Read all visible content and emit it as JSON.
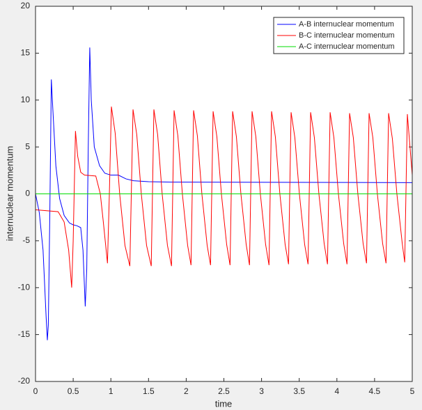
{
  "chart_data": {
    "type": "line",
    "xlabel": "time",
    "ylabel": "internuclear momentum",
    "xlim": [
      0,
      5
    ],
    "ylim": [
      -20,
      20
    ],
    "xticks": [
      0,
      0.5,
      1,
      1.5,
      2,
      2.5,
      3,
      3.5,
      4,
      4.5,
      5
    ],
    "yticks": [
      -20,
      -15,
      -10,
      -5,
      0,
      5,
      10,
      15,
      20
    ],
    "legend": "upper right",
    "series": [
      {
        "name": "A-B internuclear momentum",
        "color": "#0000ff",
        "x": [
          0,
          0.05,
          0.1,
          0.14,
          0.157,
          0.17,
          0.19,
          0.21,
          0.23,
          0.27,
          0.32,
          0.38,
          0.45,
          0.5,
          0.55,
          0.6,
          0.63,
          0.66,
          0.68,
          0.7,
          0.72,
          0.74,
          0.78,
          0.85,
          0.92,
          1.0,
          1.1,
          1.2,
          1.3,
          1.5,
          1.8,
          5
        ],
        "values": [
          0,
          -2,
          -6,
          -13,
          -15.6,
          -14,
          -2,
          12.2,
          9,
          3,
          -0.5,
          -2.3,
          -3.1,
          -3.3,
          -3.4,
          -3.6,
          -6,
          -12,
          -8,
          5,
          15.6,
          10,
          5,
          3,
          2.2,
          2.0,
          2.0,
          1.6,
          1.4,
          1.3,
          1.25,
          1.2
        ]
      },
      {
        "name": "B-C internuclear momentum",
        "color": "#ff0000",
        "x": [
          0,
          0.3,
          0.38,
          0.44,
          0.48,
          0.5,
          0.53,
          0.56,
          0.6,
          0.65,
          0.8,
          0.86,
          0.9,
          0.955,
          0.98,
          1.007,
          1.057,
          1.117,
          1.187,
          1.252,
          1.294,
          1.344,
          1.404,
          1.474,
          1.536,
          1.571,
          1.621,
          1.681,
          1.751,
          1.805,
          1.839,
          1.889,
          1.949,
          2.019,
          2.064,
          2.098,
          2.148,
          2.208,
          2.278,
          2.323,
          2.357,
          2.407,
          2.467,
          2.537,
          2.582,
          2.616,
          2.666,
          2.726,
          2.796,
          2.84,
          2.874,
          2.924,
          2.984,
          3.054,
          3.099,
          3.133,
          3.183,
          3.243,
          3.313,
          3.358,
          3.392,
          3.442,
          3.502,
          3.572,
          3.617,
          3.651,
          3.701,
          3.761,
          3.831,
          3.875,
          3.91,
          3.96,
          4.02,
          4.09,
          4.134,
          4.168,
          4.218,
          4.278,
          4.348,
          4.393,
          4.427,
          4.477,
          4.537,
          4.607,
          4.652,
          4.686,
          4.736,
          4.796,
          4.866,
          4.9,
          4.935,
          5
        ],
        "values": [
          -1.7,
          -1.9,
          -3,
          -6,
          -10,
          -5,
          6.7,
          4,
          2.3,
          2.0,
          1.9,
          0,
          -3,
          -7.4,
          0,
          9.3,
          6.5,
          0,
          -5.5,
          -7.7,
          9.0,
          6.3,
          0,
          -5.5,
          -7.7,
          9.0,
          6.3,
          0,
          -5.5,
          -7.7,
          8.9,
          6.2,
          0,
          -5.5,
          -7.6,
          8.9,
          6.2,
          0,
          -5.5,
          -7.6,
          8.8,
          6.1,
          0,
          -5.4,
          -7.6,
          8.8,
          6.1,
          0,
          -5.4,
          -7.6,
          8.8,
          6.1,
          0,
          -5.4,
          -7.6,
          8.8,
          6.1,
          0,
          -5.4,
          -7.5,
          8.7,
          6.0,
          0,
          -5.4,
          -7.5,
          8.7,
          6.0,
          0,
          -5.3,
          -7.5,
          8.7,
          6.0,
          0,
          -5.3,
          -7.5,
          8.6,
          6.0,
          0,
          -5.3,
          -7.4,
          8.6,
          6.0,
          0,
          -5.3,
          -7.4,
          8.6,
          5.9,
          0,
          -5.2,
          -7.3,
          8.5,
          2.0
        ]
      },
      {
        "name": "A-C internuclear momentum",
        "color": "#00dd00",
        "x": [
          0,
          5
        ],
        "values": [
          0,
          0
        ]
      }
    ]
  }
}
